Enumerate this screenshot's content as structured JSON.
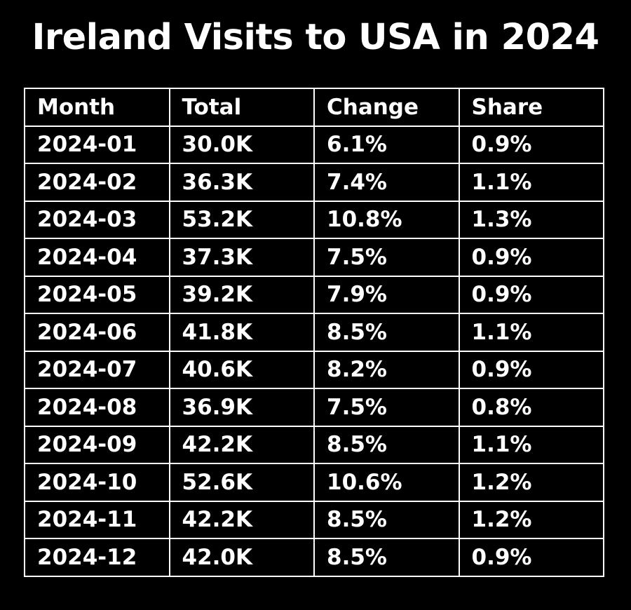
{
  "chart_data": {
    "type": "table",
    "title": "Ireland Visits to USA in 2024",
    "columns": [
      "Month",
      "Total",
      "Change",
      "Share"
    ],
    "rows": [
      [
        "2024-01",
        "30.0K",
        "6.1%",
        "0.9%"
      ],
      [
        "2024-02",
        "36.3K",
        "7.4%",
        "1.1%"
      ],
      [
        "2024-03",
        "53.2K",
        "10.8%",
        "1.3%"
      ],
      [
        "2024-04",
        "37.3K",
        "7.5%",
        "0.9%"
      ],
      [
        "2024-05",
        "39.2K",
        "7.9%",
        "0.9%"
      ],
      [
        "2024-06",
        "41.8K",
        "8.5%",
        "1.1%"
      ],
      [
        "2024-07",
        "40.6K",
        "8.2%",
        "0.9%"
      ],
      [
        "2024-08",
        "36.9K",
        "7.5%",
        "0.8%"
      ],
      [
        "2024-09",
        "42.2K",
        "8.5%",
        "1.1%"
      ],
      [
        "2024-10",
        "52.6K",
        "10.6%",
        "1.2%"
      ],
      [
        "2024-11",
        "42.2K",
        "8.5%",
        "1.2%"
      ],
      [
        "2024-12",
        "42.0K",
        "8.5%",
        "0.9%"
      ]
    ]
  }
}
